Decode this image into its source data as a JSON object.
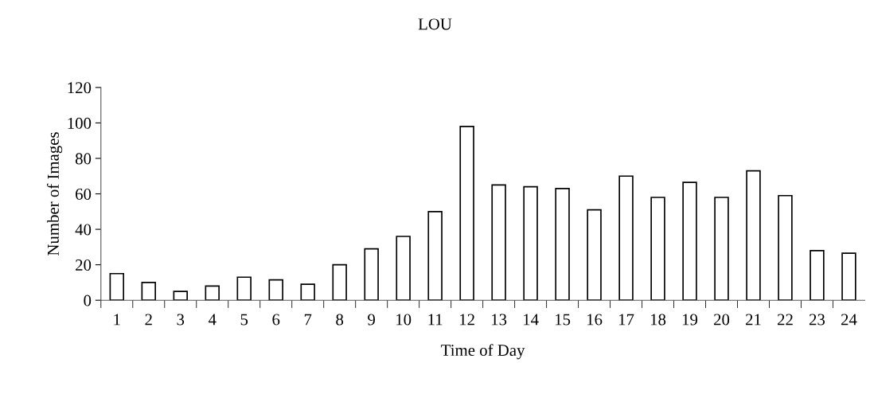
{
  "chart_data": {
    "type": "bar",
    "title": "LOU",
    "xlabel": "Time of Day",
    "ylabel": "Number of Images",
    "categories": [
      "1",
      "2",
      "3",
      "4",
      "5",
      "6",
      "7",
      "8",
      "9",
      "10",
      "11",
      "12",
      "13",
      "14",
      "15",
      "16",
      "17",
      "18",
      "19",
      "20",
      "21",
      "22",
      "23",
      "24"
    ],
    "values": [
      15,
      10,
      5,
      8,
      13,
      11.5,
      9,
      20,
      29,
      36,
      50,
      98,
      65,
      64,
      63,
      51,
      70,
      58,
      66.5,
      58,
      73,
      59,
      28,
      26.5
    ],
    "color": "#ffffff",
    "ylim": [
      0,
      120
    ],
    "yticks": [
      0,
      20,
      40,
      60,
      80,
      100,
      120
    ],
    "grid": false,
    "legend": false
  }
}
